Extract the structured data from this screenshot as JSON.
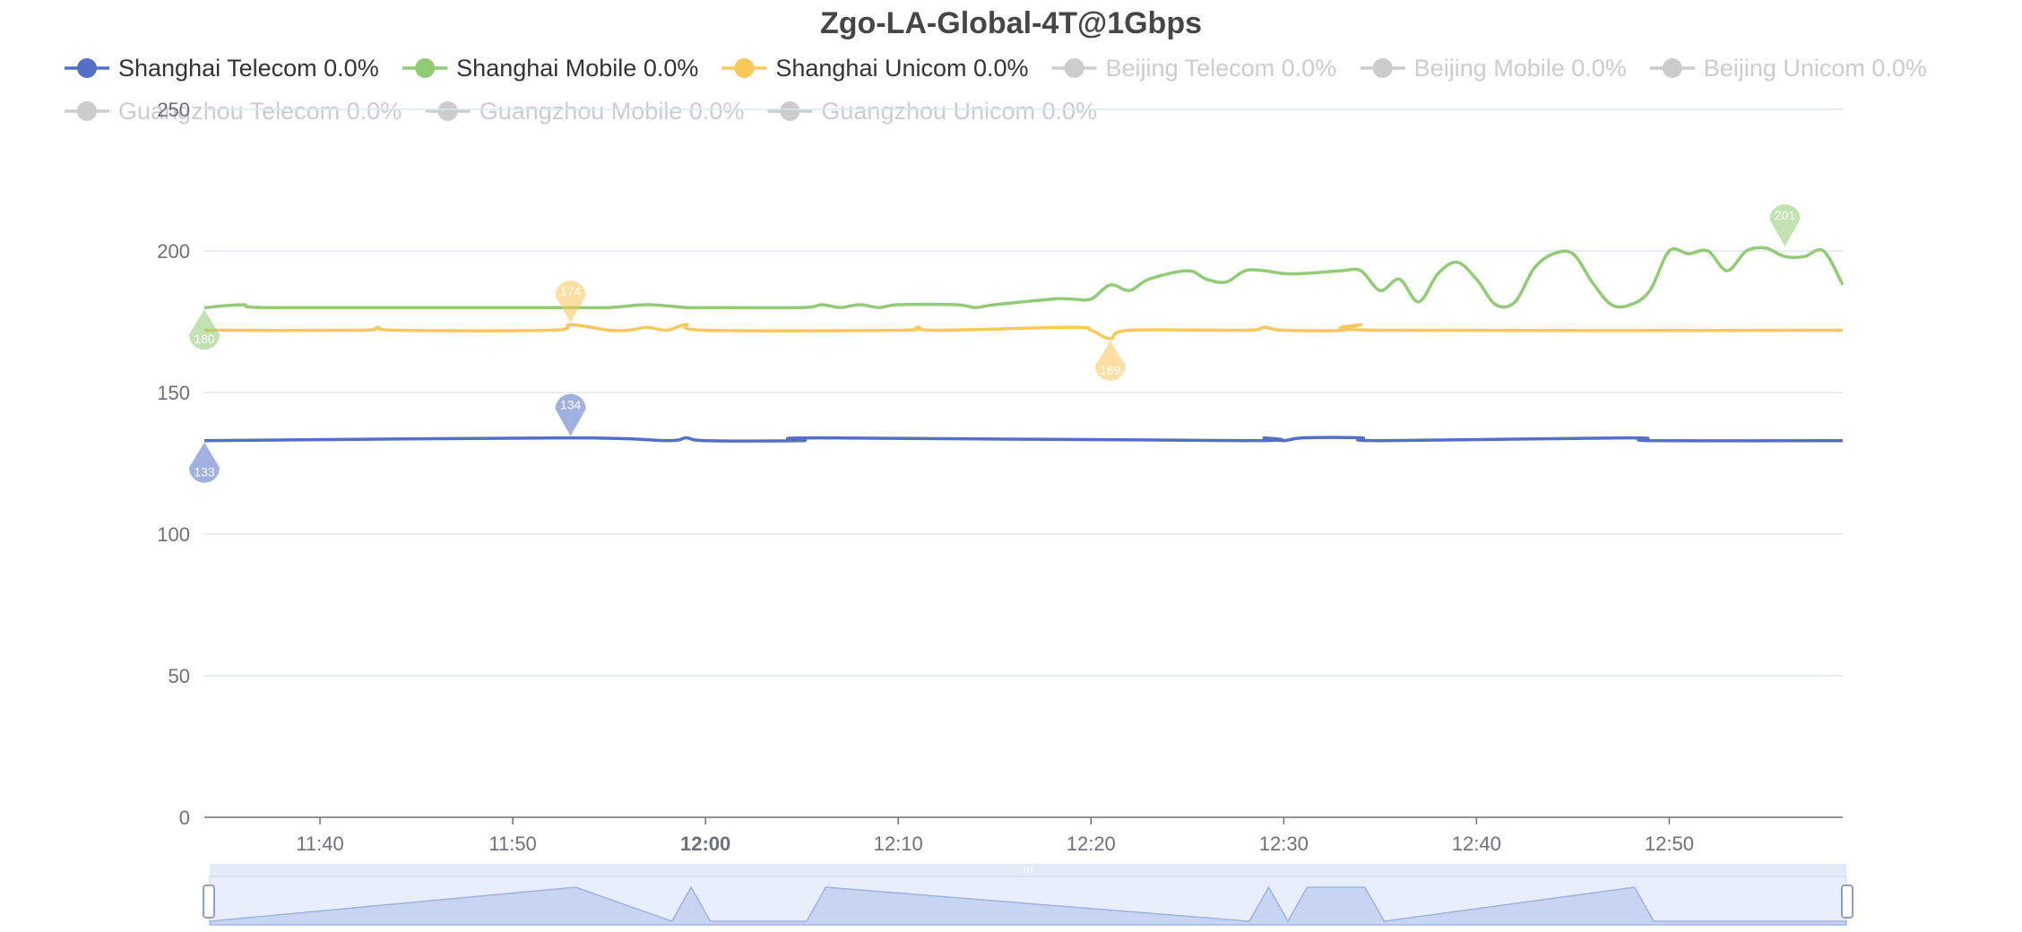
{
  "chart_data": {
    "type": "line",
    "title": "Zgo-LA-Global-4T@1Gbps",
    "xlabel": "",
    "ylabel": "",
    "ylim": [
      0,
      250
    ],
    "yticks": [
      0,
      50,
      100,
      150,
      200,
      250
    ],
    "xrange": [
      "11:34",
      "12:59"
    ],
    "xticks": [
      "11:40",
      "11:50",
      "12:00",
      "12:10",
      "12:20",
      "12:30",
      "12:40",
      "12:50"
    ],
    "bold_tick": "12:00",
    "grid": true,
    "legend_position": "top",
    "series": [
      {
        "name": "Shanghai Telecom 0.0%",
        "color": "#5470c6",
        "active": true,
        "x": [
          "11:34",
          "11:53",
          "11:58",
          "11:59",
          "12:00",
          "12:05",
          "12:06",
          "12:28",
          "12:29",
          "12:30",
          "12:31",
          "12:34",
          "12:35",
          "12:48",
          "12:49",
          "12:59"
        ],
        "values": [
          133,
          134,
          133,
          134,
          133,
          133,
          134,
          133,
          134,
          133,
          134,
          134,
          133,
          134,
          133,
          133
        ],
        "markers": [
          {
            "label": "133",
            "x": "11:34",
            "value": 133,
            "kind": "min"
          },
          {
            "label": "134",
            "x": "11:53",
            "value": 134,
            "kind": "max"
          }
        ]
      },
      {
        "name": "Shanghai Mobile 0.0%",
        "color": "#91cc75",
        "active": true,
        "x": [
          "11:34",
          "11:36",
          "11:37",
          "11:45",
          "11:53",
          "11:55",
          "11:57",
          "11:59",
          "12:00",
          "12:05",
          "12:06",
          "12:07",
          "12:08",
          "12:09",
          "12:10",
          "12:13",
          "12:14",
          "12:15",
          "12:18",
          "12:19",
          "12:20",
          "12:21",
          "12:22",
          "12:23",
          "12:25",
          "12:26",
          "12:27",
          "12:28",
          "12:29",
          "12:30",
          "12:31",
          "12:33",
          "12:34",
          "12:35",
          "12:36",
          "12:37",
          "12:38",
          "12:39",
          "12:40",
          "12:41",
          "12:42",
          "12:43",
          "12:44",
          "12:45",
          "12:46",
          "12:47",
          "12:48",
          "12:49",
          "12:50",
          "12:51",
          "12:52",
          "12:53",
          "12:54",
          "12:55",
          "12:56",
          "12:57",
          "12:58",
          "12:59"
        ],
        "values": [
          180,
          181,
          180,
          180,
          180,
          180,
          181,
          180,
          180,
          180,
          181,
          180,
          181,
          180,
          181,
          181,
          180,
          181,
          183,
          183,
          183,
          188,
          186,
          190,
          193,
          190,
          189,
          193,
          193,
          192,
          192,
          193,
          193,
          186,
          190,
          182,
          192,
          196,
          190,
          181,
          182,
          194,
          199,
          199,
          189,
          181,
          181,
          186,
          200,
          199,
          200,
          193,
          200,
          201,
          198,
          198,
          200,
          188
        ],
        "markers": [
          {
            "label": "180",
            "x": "11:34",
            "value": 180,
            "kind": "min"
          },
          {
            "label": "201",
            "x": "12:56",
            "value": 201,
            "kind": "max"
          }
        ]
      },
      {
        "name": "Shanghai Unicom 0.0%",
        "color": "#fac858",
        "active": true,
        "x": [
          "11:34",
          "11:42",
          "11:43",
          "11:44",
          "11:52",
          "11:53",
          "11:55",
          "11:56",
          "11:57",
          "11:58",
          "11:59",
          "12:00",
          "12:10",
          "12:11",
          "12:12",
          "12:19",
          "12:20",
          "12:21",
          "12:22",
          "12:28",
          "12:29",
          "12:30",
          "12:33",
          "12:34",
          "12:35",
          "12:59"
        ],
        "values": [
          172,
          172,
          173,
          172,
          172,
          174,
          172,
          172,
          173,
          172,
          174,
          172,
          172,
          173,
          172,
          173,
          172,
          169,
          172,
          172,
          173,
          172,
          172,
          174,
          172,
          172
        ],
        "markers": [
          {
            "label": "174",
            "x": "11:53",
            "value": 174,
            "kind": "max"
          },
          {
            "label": "169",
            "x": "12:21",
            "value": 169,
            "kind": "min"
          }
        ]
      },
      {
        "name": "Beijing Telecom 0.0%",
        "color": "#cccccc",
        "active": false
      },
      {
        "name": "Beijing Mobile 0.0%",
        "color": "#cccccc",
        "active": false
      },
      {
        "name": "Beijing Unicom 0.0%",
        "color": "#cccccc",
        "active": false
      },
      {
        "name": "Guangzhou Telecom 0.0%",
        "color": "#cccccc",
        "active": false
      },
      {
        "name": "Guangzhou Mobile 0.0%",
        "color": "#cccccc",
        "active": false
      },
      {
        "name": "Guangzhou Unicom 0.0%",
        "color": "#cccccc",
        "active": false
      }
    ],
    "datazoom": {
      "start": "11:34",
      "end": "12:59"
    }
  }
}
